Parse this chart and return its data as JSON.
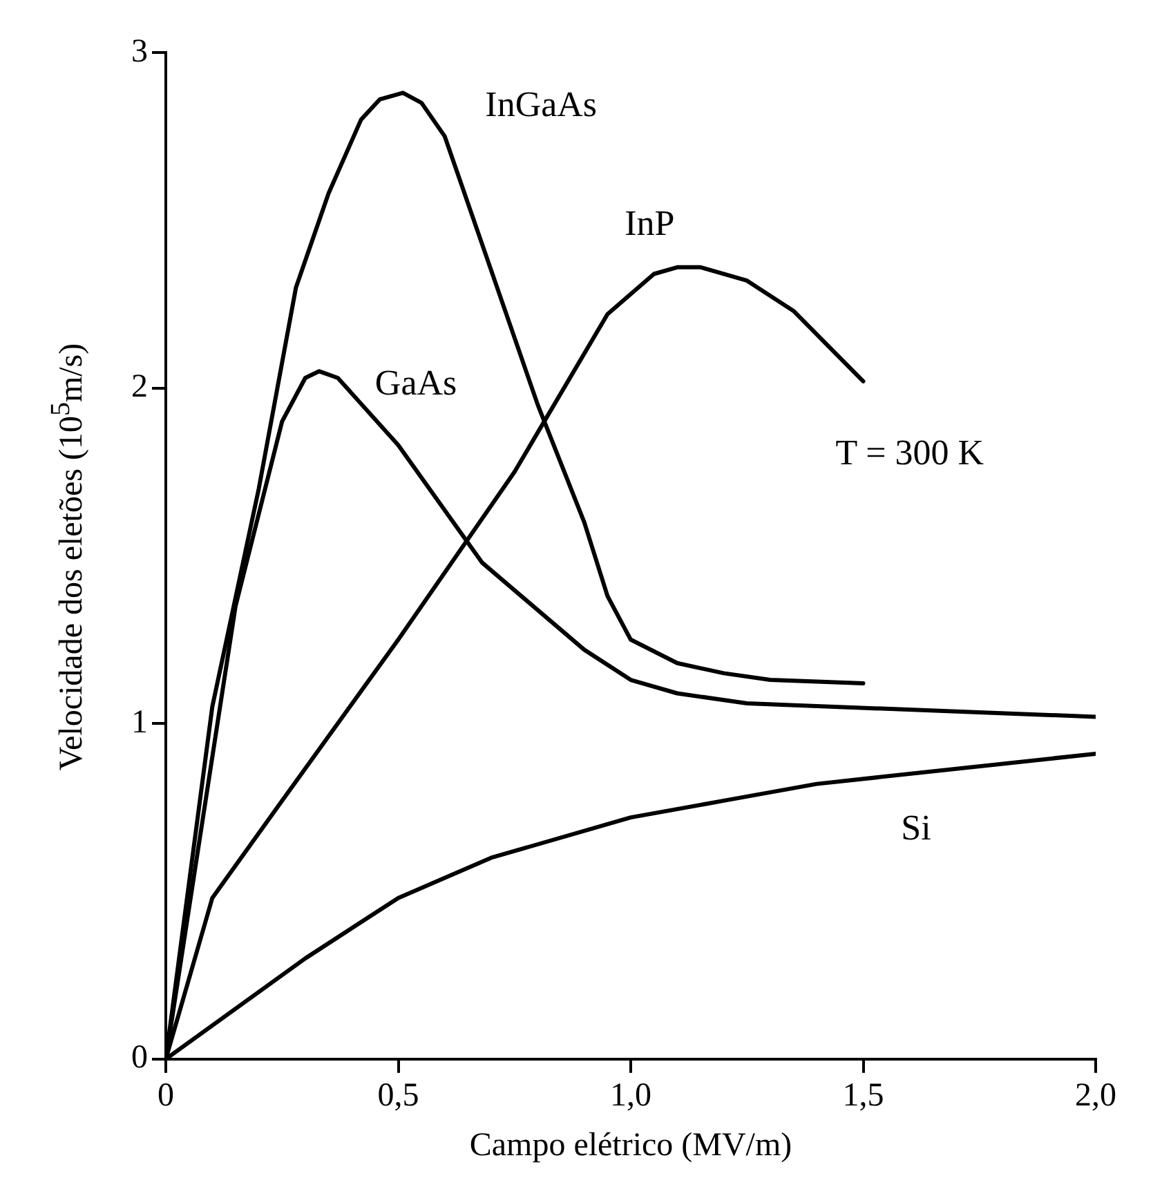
{
  "chart_data": {
    "type": "line",
    "xlabel": "Campo elétrico (MV/m)",
    "ylabel": "Velocidade dos eletões (10$^{5}$m/s)",
    "xlim": [
      0,
      2
    ],
    "ylim": [
      0,
      3
    ],
    "xticks": [
      0,
      {
        "value": 0.5,
        "label": "0,5"
      },
      {
        "value": 1,
        "label": "1,0"
      },
      {
        "value": 1.5,
        "label": "1,5"
      },
      {
        "value": 2,
        "label": "2,0"
      }
    ],
    "yticks": [
      0,
      1,
      2,
      3
    ],
    "grid": false,
    "legend": false,
    "marker": "none",
    "line_style": "solid",
    "annotations": [
      "T = 300 K"
    ],
    "series": [
      {
        "name": "InGaAs",
        "color": "#000000",
        "x": [
          0,
          0.1,
          0.2,
          0.28,
          0.35,
          0.42,
          0.46,
          0.51,
          0.55,
          0.6,
          0.7,
          0.8,
          0.9,
          0.95,
          1.0,
          1.1,
          1.2,
          1.3,
          1.5
        ],
        "values": [
          0,
          1.05,
          1.7,
          2.3,
          2.58,
          2.8,
          2.86,
          2.88,
          2.85,
          2.75,
          2.35,
          1.95,
          1.6,
          1.38,
          1.25,
          1.18,
          1.15,
          1.13,
          1.12
        ]
      },
      {
        "name": "GaAs",
        "color": "#000000",
        "x": [
          0,
          0.15,
          0.25,
          0.3,
          0.33,
          0.37,
          0.5,
          0.68,
          0.9,
          1.0,
          1.1,
          1.25,
          2.0
        ],
        "values": [
          0,
          1.35,
          1.9,
          2.03,
          2.05,
          2.03,
          1.83,
          1.48,
          1.22,
          1.13,
          1.09,
          1.06,
          1.02
        ]
      },
      {
        "name": "InP",
        "color": "#000000",
        "x": [
          0,
          0.1,
          0.25,
          0.5,
          0.75,
          0.95,
          1.05,
          1.1,
          1.15,
          1.25,
          1.35,
          1.5
        ],
        "values": [
          0,
          0.48,
          0.77,
          1.25,
          1.75,
          2.22,
          2.34,
          2.36,
          2.36,
          2.32,
          2.23,
          2.02
        ]
      },
      {
        "name": "Si",
        "color": "#000000",
        "x": [
          0,
          0.3,
          0.5,
          0.7,
          1.0,
          1.2,
          1.4,
          2.0
        ],
        "values": [
          0,
          0.3,
          0.48,
          0.6,
          0.72,
          0.77,
          0.82,
          0.91
        ]
      }
    ]
  }
}
